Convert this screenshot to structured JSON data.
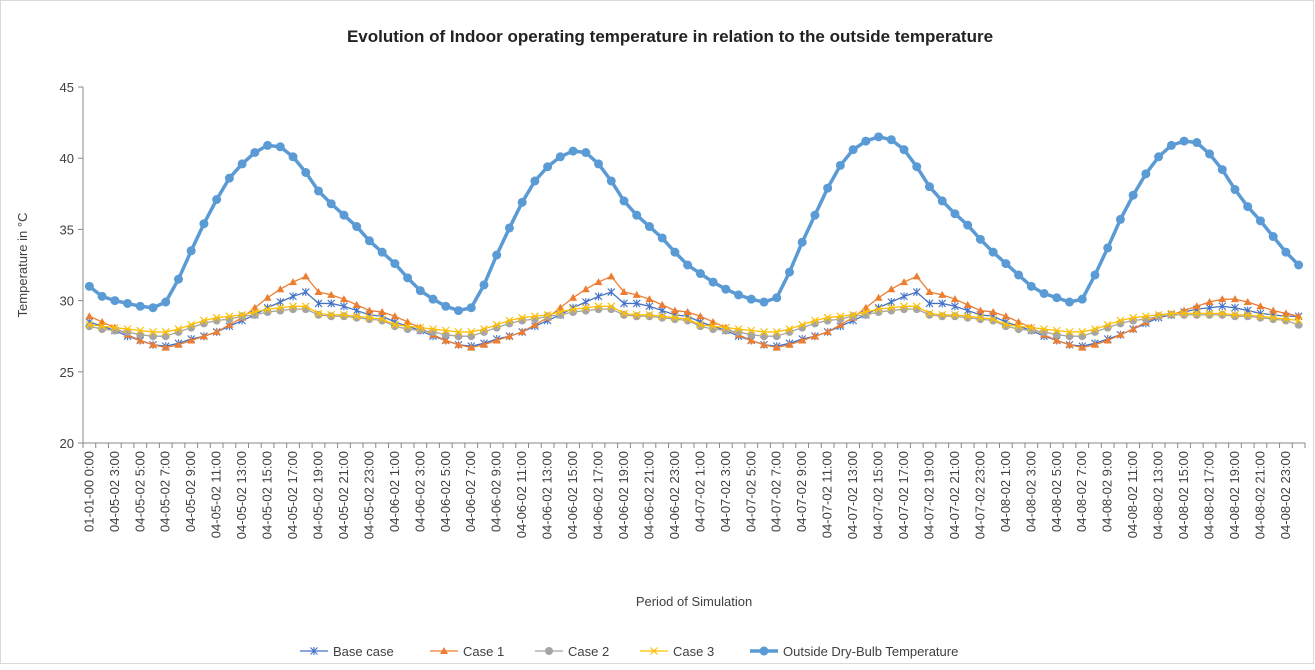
{
  "chart_data": {
    "type": "line",
    "title": "Evolution of Indoor operating temperature in relation to the outside temperature",
    "xlabel": "Period of Simulation",
    "ylabel": "Temperature in °C",
    "ylim": [
      20,
      45
    ],
    "yticks": [
      20,
      25,
      30,
      35,
      40,
      45
    ],
    "grid": false,
    "legend": "bottom",
    "categories": [
      "01-01-00 0:00",
      null,
      "04-05-02 3:00",
      null,
      "04-05-02 5:00",
      null,
      "04-05-02 7:00",
      null,
      "04-05-02 9:00",
      null,
      "04-05-02 11:00",
      null,
      "04-05-02 13:00",
      null,
      "04-05-02 15:00",
      null,
      "04-05-02 17:00",
      null,
      "04-05-02 19:00",
      null,
      "04-05-02 21:00",
      null,
      "04-05-02 23:00",
      null,
      "04-06-02 1:00",
      null,
      "04-06-02 3:00",
      null,
      "04-06-02 5:00",
      null,
      "04-06-02 7:00",
      null,
      "04-06-02 9:00",
      null,
      "04-06-02 11:00",
      null,
      "04-06-02 13:00",
      null,
      "04-06-02 15:00",
      null,
      "04-06-02 17:00",
      null,
      "04-06-02 19:00",
      null,
      "04-06-02 21:00",
      null,
      "04-06-02 23:00",
      null,
      "04-07-02 1:00",
      null,
      "04-07-02 3:00",
      null,
      "04-07-02 5:00",
      null,
      "04-07-02 7:00",
      null,
      "04-07-02 9:00",
      null,
      "04-07-02 11:00",
      null,
      "04-07-02 13:00",
      null,
      "04-07-02 15:00",
      null,
      "04-07-02 17:00",
      null,
      "04-07-02 19:00",
      null,
      "04-07-02 21:00",
      null,
      "04-07-02 23:00",
      null,
      "04-08-02 1:00",
      null,
      "04-08-02 3:00",
      null,
      "04-08-02 5:00",
      null,
      "04-08-02 7:00",
      null,
      "04-08-02 9:00",
      null,
      "04-08-02 11:00",
      null,
      "04-08-02 13:00",
      null,
      "04-08-02 15:00",
      null,
      "04-08-02 17:00",
      null,
      "04-08-02 19:00",
      null,
      "04-08-02 21:00",
      null,
      "04-08-02 23:00",
      null
    ],
    "series": [
      {
        "name": "Base case",
        "color": "#4472c4",
        "marker": "star",
        "values": [
          28.5,
          28.2,
          27.9,
          27.5,
          27.2,
          26.9,
          26.8,
          27.0,
          27.3,
          27.5,
          27.8,
          28.2,
          28.6,
          29.0,
          29.5,
          29.9,
          30.3,
          30.6,
          29.8,
          29.8,
          29.6,
          29.3,
          29.0,
          28.9,
          28.5,
          28.2,
          27.9,
          27.5,
          27.2,
          26.9,
          26.8,
          27.0,
          27.3,
          27.5,
          27.8,
          28.2,
          28.6,
          29.0,
          29.5,
          29.9,
          30.3,
          30.6,
          29.8,
          29.8,
          29.6,
          29.3,
          29.0,
          28.9,
          28.5,
          28.2,
          27.9,
          27.5,
          27.2,
          26.9,
          26.8,
          27.0,
          27.3,
          27.5,
          27.8,
          28.2,
          28.6,
          29.0,
          29.5,
          29.9,
          30.3,
          30.6,
          29.8,
          29.8,
          29.6,
          29.3,
          29.0,
          28.9,
          28.5,
          28.2,
          27.9,
          27.5,
          27.2,
          26.9,
          26.8,
          27.0,
          27.3,
          27.6,
          28.0,
          28.4,
          28.8,
          29.0,
          29.2,
          29.4,
          29.5,
          29.6,
          29.5,
          29.3,
          29.1,
          29.0,
          28.9,
          28.9
        ]
      },
      {
        "name": "Case 1",
        "color": "#ed7d31",
        "marker": "triangle",
        "values": [
          28.9,
          28.5,
          28.1,
          27.6,
          27.2,
          26.9,
          26.7,
          26.9,
          27.2,
          27.5,
          27.8,
          28.3,
          28.8,
          29.5,
          30.2,
          30.8,
          31.3,
          31.7,
          30.6,
          30.4,
          30.1,
          29.7,
          29.3,
          29.2,
          28.9,
          28.5,
          28.1,
          27.6,
          27.2,
          26.9,
          26.7,
          26.9,
          27.2,
          27.5,
          27.8,
          28.3,
          28.8,
          29.5,
          30.2,
          30.8,
          31.3,
          31.7,
          30.6,
          30.4,
          30.1,
          29.7,
          29.3,
          29.2,
          28.9,
          28.5,
          28.1,
          27.6,
          27.2,
          26.9,
          26.7,
          26.9,
          27.2,
          27.5,
          27.8,
          28.3,
          28.8,
          29.5,
          30.2,
          30.8,
          31.3,
          31.7,
          30.6,
          30.4,
          30.1,
          29.7,
          29.3,
          29.2,
          28.9,
          28.5,
          28.1,
          27.6,
          27.2,
          26.9,
          26.7,
          26.9,
          27.2,
          27.6,
          28.0,
          28.5,
          28.9,
          29.0,
          29.3,
          29.6,
          29.9,
          30.1,
          30.1,
          29.9,
          29.6,
          29.3,
          29.1,
          28.9
        ]
      },
      {
        "name": "Case 2",
        "color": "#a5a5a5",
        "marker": "circle",
        "values": [
          28.2,
          28.0,
          27.9,
          27.8,
          27.6,
          27.5,
          27.5,
          27.8,
          28.1,
          28.4,
          28.6,
          28.7,
          28.9,
          29.0,
          29.2,
          29.3,
          29.4,
          29.4,
          29.0,
          28.9,
          28.9,
          28.8,
          28.7,
          28.6,
          28.2,
          28.0,
          27.9,
          27.8,
          27.6,
          27.5,
          27.5,
          27.8,
          28.1,
          28.4,
          28.6,
          28.7,
          28.9,
          29.0,
          29.2,
          29.3,
          29.4,
          29.4,
          29.0,
          28.9,
          28.9,
          28.8,
          28.7,
          28.6,
          28.2,
          28.0,
          27.9,
          27.8,
          27.6,
          27.5,
          27.5,
          27.8,
          28.1,
          28.4,
          28.6,
          28.7,
          28.9,
          29.0,
          29.2,
          29.3,
          29.4,
          29.4,
          29.0,
          28.9,
          28.9,
          28.8,
          28.7,
          28.6,
          28.2,
          28.0,
          27.9,
          27.8,
          27.6,
          27.5,
          27.5,
          27.8,
          28.1,
          28.4,
          28.6,
          28.7,
          28.9,
          29.0,
          29.0,
          29.0,
          29.0,
          29.0,
          28.9,
          28.9,
          28.8,
          28.7,
          28.6,
          28.3
        ]
      },
      {
        "name": "Case 3",
        "color": "#ffc000",
        "marker": "x",
        "values": [
          28.3,
          28.2,
          28.1,
          28.0,
          27.9,
          27.8,
          27.8,
          28.0,
          28.3,
          28.6,
          28.8,
          28.9,
          29.0,
          29.2,
          29.4,
          29.5,
          29.6,
          29.6,
          29.1,
          29.0,
          29.0,
          28.9,
          28.8,
          28.7,
          28.3,
          28.2,
          28.1,
          28.0,
          27.9,
          27.8,
          27.8,
          28.0,
          28.3,
          28.6,
          28.8,
          28.9,
          29.0,
          29.2,
          29.4,
          29.5,
          29.6,
          29.6,
          29.1,
          29.0,
          29.0,
          28.9,
          28.8,
          28.7,
          28.3,
          28.2,
          28.1,
          28.0,
          27.9,
          27.8,
          27.8,
          28.0,
          28.3,
          28.6,
          28.8,
          28.9,
          29.0,
          29.2,
          29.4,
          29.5,
          29.6,
          29.6,
          29.1,
          29.0,
          29.0,
          28.9,
          28.8,
          28.7,
          28.3,
          28.2,
          28.1,
          28.0,
          27.9,
          27.8,
          27.8,
          28.0,
          28.3,
          28.6,
          28.8,
          28.9,
          29.0,
          29.1,
          29.1,
          29.1,
          29.1,
          29.1,
          29.0,
          29.0,
          28.9,
          28.8,
          28.7,
          28.6
        ]
      },
      {
        "name": "Outside Dry-Bulb Temperature",
        "color": "#5b9bd5",
        "marker": "bigcircle",
        "values": [
          31.0,
          30.3,
          30.0,
          29.8,
          29.6,
          29.5,
          29.9,
          31.5,
          33.5,
          35.4,
          37.1,
          38.6,
          39.6,
          40.4,
          40.9,
          40.8,
          40.1,
          39.0,
          37.7,
          36.8,
          36.0,
          35.2,
          34.2,
          33.4,
          32.6,
          31.6,
          30.7,
          30.1,
          29.6,
          29.3,
          29.5,
          31.1,
          33.2,
          35.1,
          36.9,
          38.4,
          39.4,
          40.1,
          40.5,
          40.4,
          39.6,
          38.4,
          37.0,
          36.0,
          35.2,
          34.4,
          33.4,
          32.5,
          31.9,
          31.3,
          30.8,
          30.4,
          30.1,
          29.9,
          30.2,
          32.0,
          34.1,
          36.0,
          37.9,
          39.5,
          40.6,
          41.2,
          41.5,
          41.3,
          40.6,
          39.4,
          38.0,
          37.0,
          36.1,
          35.3,
          34.3,
          33.4,
          32.6,
          31.8,
          31.0,
          30.5,
          30.2,
          29.9,
          30.1,
          31.8,
          33.7,
          35.7,
          37.4,
          38.9,
          40.1,
          40.9,
          41.2,
          41.1,
          40.3,
          39.2,
          37.8,
          36.6,
          35.6,
          34.5,
          33.4,
          32.5
        ]
      }
    ]
  }
}
